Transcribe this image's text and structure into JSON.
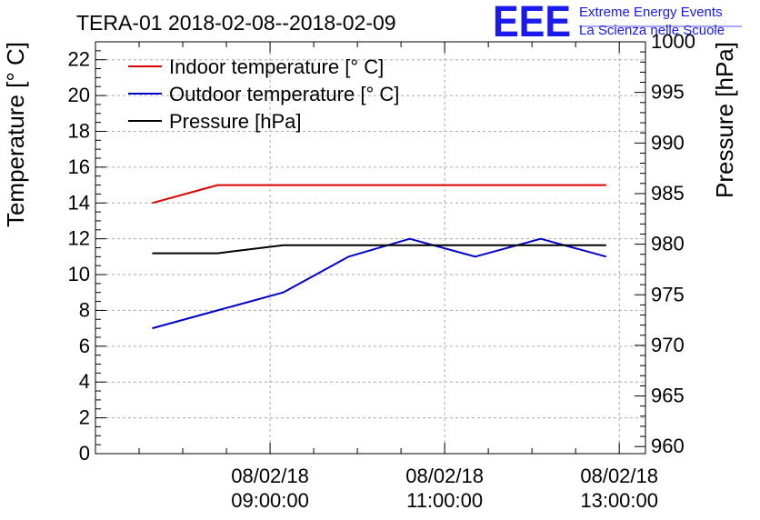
{
  "chart_data": {
    "type": "line",
    "title": "TERA-01 2018-02-08--2018-02-09",
    "ylabel": "Temperature [° C]",
    "y2label": "Pressure [hPa]",
    "xlabel": "",
    "ylim": [
      0,
      23
    ],
    "y2lim": [
      959.3,
      1000
    ],
    "yticks": [
      "0",
      "2",
      "4",
      "6",
      "8",
      "10",
      "12",
      "14",
      "16",
      "18",
      "20",
      "22"
    ],
    "y2ticks": [
      "960",
      "965",
      "970",
      "975",
      "980",
      "985",
      "990",
      "995",
      "1000"
    ],
    "xticks": [
      {
        "date": "08/02/18",
        "time": "09:00:00",
        "value": 9.0
      },
      {
        "date": "08/02/18",
        "time": "11:00:00",
        "value": 11.0
      },
      {
        "date": "08/02/18",
        "time": "13:00:00",
        "value": 13.0
      }
    ],
    "xlim_hours": [
      7.0,
      13.3
    ],
    "grid": true,
    "legend_position": "top-left",
    "series": [
      {
        "name": "Indoor temperature [° C]",
        "color": "#dd0000",
        "axis": "left",
        "x": [
          7.65,
          8.4,
          9.15,
          9.9,
          10.6,
          11.35,
          12.1,
          12.85
        ],
        "y": [
          14,
          15,
          15,
          15,
          15,
          15,
          15,
          15
        ]
      },
      {
        "name": "Outdoor temperature [° C]",
        "color": "#0000cc",
        "axis": "left",
        "x": [
          7.65,
          8.4,
          9.15,
          9.9,
          10.6,
          11.35,
          12.1,
          12.85
        ],
        "y": [
          7,
          8,
          9,
          11,
          12,
          11,
          12,
          11
        ]
      },
      {
        "name": "Pressure [hPa]",
        "color": "#000000",
        "axis": "right",
        "x": [
          7.65,
          8.4,
          9.15,
          9.9,
          10.6,
          11.35,
          12.1,
          12.85
        ],
        "y": [
          979.1,
          979.1,
          979.9,
          979.9,
          979.9,
          979.9,
          979.9,
          979.9
        ]
      }
    ]
  },
  "logo": {
    "letters": "EEE",
    "line1": "Extreme Energy Events",
    "line2": "La Scienza nelle Scuole",
    "color": "#1a1aee"
  }
}
